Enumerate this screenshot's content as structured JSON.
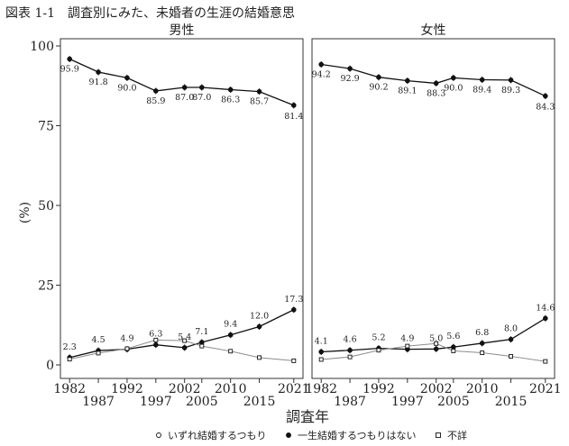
{
  "figure": {
    "title": "図表 1-1　調査別にみた、未婚者の生涯の結婚意思"
  },
  "chart_data": {
    "type": "line",
    "title": "図表 1-1　調査別にみた、未婚者の生涯の結婚意思",
    "xlabel": "調査年",
    "ylabel": "(%)",
    "ylim": [
      0,
      100
    ],
    "yticks": [
      0,
      25,
      50,
      75,
      100
    ],
    "x": [
      1982,
      1987,
      1992,
      1997,
      2002,
      2005,
      2010,
      2015,
      2021
    ],
    "xticks_upper": [
      "1982",
      "1992",
      "2002",
      "2010",
      "2021"
    ],
    "xticks_lower": [
      "1987",
      "1997",
      "2005",
      "2015"
    ],
    "grid": false,
    "legend_position": "bottom",
    "legend": [
      {
        "name": "いずれ結婚するつもり",
        "marker": "open-circle"
      },
      {
        "name": "一生結婚するつもりはない",
        "marker": "filled-circle"
      },
      {
        "name": "不詳",
        "marker": "open-square"
      }
    ],
    "panels": [
      {
        "name": "男性",
        "series": [
          {
            "name": "いずれ結婚するつもり",
            "values": [
              95.9,
              91.8,
              90.0,
              85.9,
              87.0,
              87.0,
              86.3,
              85.7,
              81.4
            ],
            "labels": [
              "95.9",
              "91.8",
              "90.0",
              "85.9",
              "87.0",
              "87.0",
              "86.3",
              "85.7",
              "81.4"
            ]
          },
          {
            "name": "一生結婚するつもりはない",
            "values": [
              2.3,
              4.5,
              4.9,
              6.3,
              5.4,
              7.1,
              9.4,
              12.0,
              17.3
            ],
            "labels": [
              "2.3",
              "4.5",
              "4.9",
              "6.3",
              "5.4",
              "7.1",
              "9.4",
              "12.0",
              "17.3"
            ]
          },
          {
            "name": "不詳",
            "values": [
              1.8,
              3.7,
              5.1,
              7.8,
              7.6,
              5.9,
              4.3,
              2.3,
              1.3
            ],
            "labels": []
          }
        ]
      },
      {
        "name": "女性",
        "series": [
          {
            "name": "いずれ結婚するつもり",
            "values": [
              94.2,
              92.9,
              90.2,
              89.1,
              88.3,
              90.0,
              89.4,
              89.3,
              84.3
            ],
            "labels": [
              "94.2",
              "92.9",
              "90.2",
              "89.1",
              "88.3",
              "90.0",
              "89.4",
              "89.3",
              "84.3"
            ]
          },
          {
            "name": "一生結婚するつもりはない",
            "values": [
              4.1,
              4.6,
              5.2,
              4.9,
              5.0,
              5.6,
              6.8,
              8.0,
              14.6
            ],
            "labels": [
              "4.1",
              "4.6",
              "5.2",
              "4.9",
              "5.0",
              "5.6",
              "6.8",
              "8.0",
              "14.6"
            ]
          },
          {
            "name": "不詳",
            "values": [
              1.7,
              2.5,
              4.6,
              5.9,
              6.7,
              4.4,
              3.8,
              2.7,
              1.1
            ],
            "labels": []
          }
        ]
      }
    ],
    "colors": {
      "line_main": "#111111",
      "line_unknown": "#8c8c8c",
      "label": "#333333",
      "label_highlight": "#d2691e"
    }
  }
}
